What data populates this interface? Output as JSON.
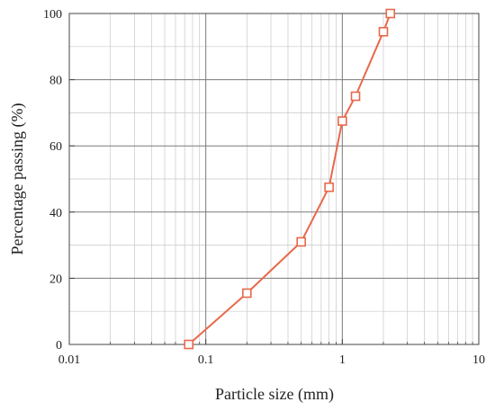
{
  "chart_data": {
    "type": "line",
    "xlabel": "Particle size (mm)",
    "ylabel": "Percentage passing (%)",
    "xscale": "log",
    "xlim": [
      0.01,
      10
    ],
    "ylim": [
      0,
      100
    ],
    "grid": true,
    "x_ticks": [
      0.01,
      0.1,
      1,
      10
    ],
    "x_tick_labels": [
      "0.01",
      "0.1",
      "1",
      "10"
    ],
    "y_ticks": [
      0,
      20,
      40,
      60,
      80,
      100
    ],
    "y_tick_labels": [
      "0",
      "20",
      "40",
      "60",
      "80",
      "100"
    ],
    "line_color": "#e8684a",
    "marker": "open-square",
    "series": [
      {
        "x": [
          0.075,
          0.2,
          0.5,
          0.8,
          1.0,
          1.25,
          2.0,
          2.25
        ],
        "y": [
          0,
          15.5,
          31,
          47.5,
          67.5,
          75,
          94.5,
          100
        ]
      }
    ]
  }
}
